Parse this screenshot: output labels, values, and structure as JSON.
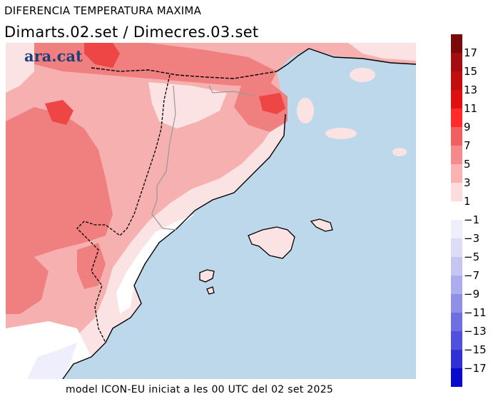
{
  "header": {
    "title": "DIFERENCIA TEMPERATURA MAXIMA",
    "subtitle": "Dimarts.02.set / Dimecres.03.set"
  },
  "logo_text": "ara.cat",
  "footer": "model ICON-EU iniciat a les 00 UTC del 02 set 2025",
  "legend": {
    "positive_labels": [
      "17",
      "15",
      "13",
      "11",
      "9",
      "7",
      "5",
      "3",
      "1"
    ],
    "negative_labels": [
      "−1",
      "−3",
      "−5",
      "−7",
      "−9",
      "−11",
      "−13",
      "−15",
      "−17"
    ],
    "positive_colors": [
      "#7a0a0a",
      "#a30d0d",
      "#c20e0e",
      "#e01010",
      "#ff2a2a",
      "#f06060",
      "#f58a8a",
      "#f9b3b3",
      "#fcdcdc"
    ],
    "negative_colors": [
      "#eeeefc",
      "#dcdcf7",
      "#c6c6f2",
      "#adadee",
      "#9090e8",
      "#6f6fe2",
      "#5050dc",
      "#3030d5",
      "#0a0acc"
    ]
  },
  "map_colors": {
    "sea": "#bdd8ea",
    "land_light": "#fbe3e3",
    "land_mid": "#f6b0b0",
    "land_warm": "#f08080",
    "land_hot": "#ee4545",
    "cool": "#eeeefc"
  }
}
